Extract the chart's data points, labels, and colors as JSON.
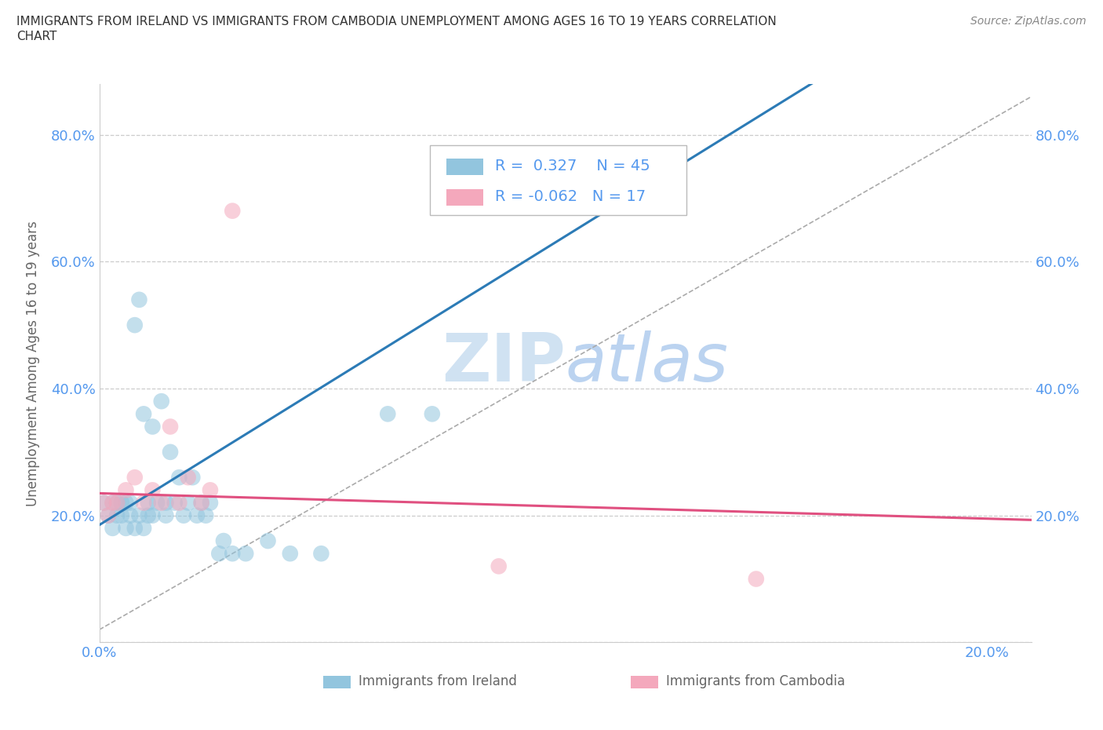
{
  "title_line1": "IMMIGRANTS FROM IRELAND VS IMMIGRANTS FROM CAMBODIA UNEMPLOYMENT AMONG AGES 16 TO 19 YEARS CORRELATION",
  "title_line2": "CHART",
  "source": "Source: ZipAtlas.com",
  "ylabel": "Unemployment Among Ages 16 to 19 years",
  "ireland_R": 0.327,
  "ireland_N": 45,
  "cambodia_R": -0.062,
  "cambodia_N": 17,
  "ireland_color": "#92c5de",
  "ireland_line_color": "#2c7bb6",
  "cambodia_color": "#f4a8bc",
  "cambodia_line_color": "#e05080",
  "watermark_color": "#d8e8f4",
  "grid_color": "#cccccc",
  "tick_color": "#5599ee",
  "axis_label_color": "#666666",
  "title_color": "#333333",
  "xlim": [
    0.0,
    0.21
  ],
  "ylim": [
    0.0,
    0.88
  ],
  "xtick_vals": [
    0.0,
    0.05,
    0.1,
    0.15,
    0.2
  ],
  "xtick_labels": [
    "0.0%",
    "",
    "",
    "",
    "20.0%"
  ],
  "ytick_vals": [
    0.0,
    0.2,
    0.4,
    0.6,
    0.8
  ],
  "ytick_labels": [
    "",
    "20.0%",
    "40.0%",
    "60.0%",
    "80.0%"
  ],
  "ireland_x": [
    0.001,
    0.002,
    0.003,
    0.003,
    0.004,
    0.004,
    0.005,
    0.005,
    0.006,
    0.006,
    0.007,
    0.007,
    0.008,
    0.008,
    0.009,
    0.009,
    0.01,
    0.01,
    0.011,
    0.011,
    0.012,
    0.012,
    0.013,
    0.014,
    0.015,
    0.015,
    0.016,
    0.017,
    0.018,
    0.019,
    0.02,
    0.021,
    0.022,
    0.023,
    0.024,
    0.025,
    0.027,
    0.028,
    0.03,
    0.033,
    0.038,
    0.043,
    0.05,
    0.065,
    0.075
  ],
  "ireland_y": [
    0.22,
    0.2,
    0.18,
    0.22,
    0.2,
    0.22,
    0.2,
    0.22,
    0.18,
    0.22,
    0.2,
    0.22,
    0.18,
    0.5,
    0.2,
    0.54,
    0.18,
    0.36,
    0.2,
    0.22,
    0.2,
    0.34,
    0.22,
    0.38,
    0.2,
    0.22,
    0.3,
    0.22,
    0.26,
    0.2,
    0.22,
    0.26,
    0.2,
    0.22,
    0.2,
    0.22,
    0.14,
    0.16,
    0.14,
    0.14,
    0.16,
    0.14,
    0.14,
    0.36,
    0.36
  ],
  "cambodia_x": [
    0.001,
    0.002,
    0.003,
    0.004,
    0.006,
    0.008,
    0.01,
    0.012,
    0.014,
    0.016,
    0.018,
    0.02,
    0.023,
    0.025,
    0.03,
    0.09,
    0.148
  ],
  "cambodia_y": [
    0.22,
    0.2,
    0.22,
    0.22,
    0.24,
    0.26,
    0.22,
    0.24,
    0.22,
    0.34,
    0.22,
    0.26,
    0.22,
    0.24,
    0.68,
    0.12,
    0.1
  ]
}
